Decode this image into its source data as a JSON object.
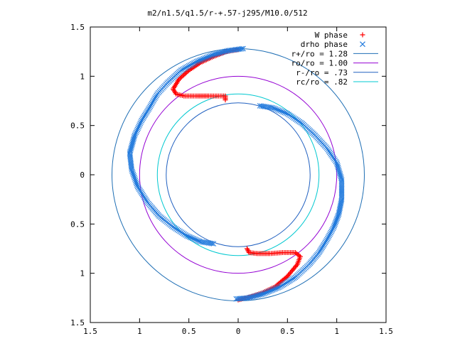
{
  "chart_data": {
    "type": "scatter",
    "title": "m2/n1.5/q1.5/r-+.57-j295/M10.0/512",
    "xlabel": "",
    "ylabel": "",
    "xlim": [
      -1.5,
      1.5
    ],
    "ylim": [
      -1.5,
      1.5
    ],
    "x_ticks": [
      {
        "value": -1.5,
        "label": "1.5"
      },
      {
        "value": -1.0,
        "label": "1"
      },
      {
        "value": -0.5,
        "label": "0.5"
      },
      {
        "value": 0.0,
        "label": "0"
      },
      {
        "value": 0.5,
        "label": "0.5"
      },
      {
        "value": 1.0,
        "label": "1"
      },
      {
        "value": 1.5,
        "label": "1.5"
      }
    ],
    "y_ticks": [
      {
        "value": 1.5,
        "label": "1.5"
      },
      {
        "value": 1.0,
        "label": "1"
      },
      {
        "value": 0.5,
        "label": "0.5"
      },
      {
        "value": 0.0,
        "label": "0"
      },
      {
        "value": -0.5,
        "label": "0.5"
      },
      {
        "value": -1.0,
        "label": "1"
      },
      {
        "value": -1.5,
        "label": "1.5"
      }
    ],
    "grid": false,
    "legend_position": "top-right",
    "series": [
      {
        "name": "W phase",
        "marker": "plus",
        "color": "#ff0000",
        "arms": [
          [
            [
              -0.13,
              0.76
            ],
            [
              -0.13,
              0.8
            ],
            [
              -0.2,
              0.8
            ],
            [
              -0.3,
              0.8
            ],
            [
              -0.42,
              0.8
            ],
            [
              -0.55,
              0.8
            ],
            [
              -0.63,
              0.82
            ],
            [
              -0.66,
              0.87
            ],
            [
              -0.6,
              0.97
            ],
            [
              -0.5,
              1.06
            ],
            [
              -0.38,
              1.14
            ],
            [
              -0.25,
              1.2
            ],
            [
              -0.12,
              1.25
            ],
            [
              0.0,
              1.27
            ]
          ],
          [
            [
              0.09,
              -0.75
            ],
            [
              0.11,
              -0.79
            ],
            [
              0.2,
              -0.8
            ],
            [
              0.32,
              -0.8
            ],
            [
              0.45,
              -0.79
            ],
            [
              0.58,
              -0.79
            ],
            [
              0.63,
              -0.83
            ],
            [
              0.6,
              -0.91
            ],
            [
              0.5,
              -1.03
            ],
            [
              0.37,
              -1.14
            ],
            [
              0.24,
              -1.2
            ],
            [
              0.12,
              -1.24
            ],
            [
              0.0,
              -1.27
            ]
          ]
        ]
      },
      {
        "name": "drho phase",
        "marker": "cross",
        "color": "#1e78dc",
        "arms": [
          [
            [
              0.22,
              0.7
            ],
            [
              0.35,
              0.68
            ],
            [
              0.5,
              0.62
            ],
            [
              0.65,
              0.52
            ],
            [
              0.78,
              0.4
            ],
            [
              0.9,
              0.27
            ],
            [
              1.0,
              0.12
            ],
            [
              1.05,
              -0.05
            ],
            [
              1.05,
              -0.25
            ],
            [
              1.02,
              -0.4
            ],
            [
              0.97,
              -0.53
            ],
            [
              0.9,
              -0.66
            ],
            [
              0.82,
              -0.79
            ],
            [
              0.72,
              -0.91
            ],
            [
              0.58,
              -1.04
            ],
            [
              0.42,
              -1.14
            ],
            [
              0.25,
              -1.21
            ],
            [
              0.1,
              -1.25
            ],
            [
              -0.02,
              -1.26
            ]
          ],
          [
            [
              -0.25,
              -0.7
            ],
            [
              -0.38,
              -0.68
            ],
            [
              -0.52,
              -0.62
            ],
            [
              -0.66,
              -0.53
            ],
            [
              -0.8,
              -0.42
            ],
            [
              -0.92,
              -0.28
            ],
            [
              -1.02,
              -0.12
            ],
            [
              -1.08,
              0.05
            ],
            [
              -1.1,
              0.22
            ],
            [
              -1.05,
              0.4
            ],
            [
              -0.98,
              0.55
            ],
            [
              -0.9,
              0.68
            ],
            [
              -0.82,
              0.82
            ],
            [
              -0.72,
              0.93
            ],
            [
              -0.58,
              1.06
            ],
            [
              -0.42,
              1.15
            ],
            [
              -0.25,
              1.22
            ],
            [
              -0.1,
              1.26
            ],
            [
              0.05,
              1.28
            ]
          ]
        ]
      }
    ],
    "circles": [
      {
        "name": "r+/ro = 1.28",
        "radius": 1.28,
        "color": "#1e6eb4"
      },
      {
        "name": "ro/ro = 1.00",
        "radius": 1.0,
        "color": "#9400d3"
      },
      {
        "name": "r-/ro = .73",
        "radius": 0.73,
        "color": "#2060c0"
      },
      {
        "name": "rc/ro = .82",
        "radius": 0.82,
        "color": "#00c8d0"
      }
    ]
  }
}
